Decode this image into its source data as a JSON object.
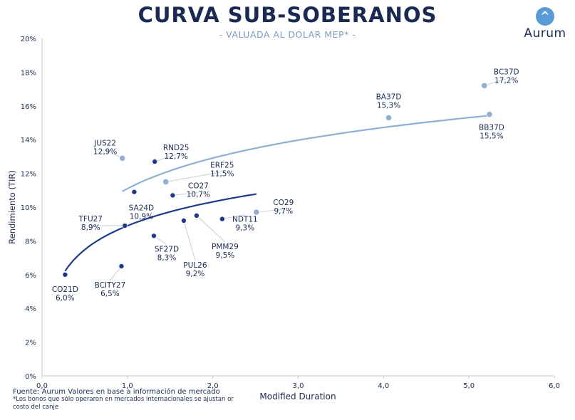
{
  "header": {
    "title": "CURVA SUB-SOBERANOS",
    "subtitle": "- VALUADA AL DOLAR MEP* -"
  },
  "logo": {
    "mark_glyph": "^",
    "name": "Aurum"
  },
  "footer": {
    "source": "Fuente: Aurum Valores en base a información de mercado",
    "note": "*Los bonos que sólo operaron en mercados internacionales se ajustan or costo del canje"
  },
  "colors": {
    "dark_series": "#1f3a8a",
    "light_series": "#8fb0d3",
    "axis": "#c8c8c8",
    "text": "#1a2a52"
  },
  "chart_data": {
    "type": "scatter",
    "xlabel": "Modified Duration",
    "ylabel": "Rendimiento (TIR)",
    "xlim": [
      0,
      6
    ],
    "ylim": [
      0,
      20
    ],
    "x_ticks": [
      "0,0",
      "1,0",
      "2,0",
      "3,0",
      "4,0",
      "5,0",
      "6,0"
    ],
    "y_ticks": [
      "0%",
      "2%",
      "4%",
      "6%",
      "8%",
      "10%",
      "12%",
      "14%",
      "16%",
      "18%",
      "20%"
    ],
    "grid": false,
    "series": [
      {
        "group": "dark",
        "points": [
          {
            "label": "CO21D",
            "value_label": "6,0%",
            "x": 0.27,
            "y": 6.0
          },
          {
            "label": "BCITY27",
            "value_label": "6,5%",
            "x": 0.93,
            "y": 6.5
          },
          {
            "label": "TFU27",
            "value_label": "8,9%",
            "x": 0.97,
            "y": 8.9
          },
          {
            "label": "SA24D",
            "value_label": "10,9%",
            "x": 1.08,
            "y": 10.9
          },
          {
            "label": "RND25",
            "value_label": "12,7%",
            "x": 1.32,
            "y": 12.7
          },
          {
            "label": "SF27D",
            "value_label": "8,3%",
            "x": 1.31,
            "y": 8.3
          },
          {
            "label": "CO27",
            "value_label": "10,7%",
            "x": 1.53,
            "y": 10.7
          },
          {
            "label": "PUL26",
            "value_label": "9,2%",
            "x": 1.66,
            "y": 9.2
          },
          {
            "label": "PMM29",
            "value_label": "9,5%",
            "x": 1.81,
            "y": 9.5
          },
          {
            "label": "NDT11",
            "value_label": "9,3%",
            "x": 2.11,
            "y": 9.3
          }
        ]
      },
      {
        "group": "light",
        "points": [
          {
            "label": "JUS22",
            "value_label": "12,9%",
            "x": 0.94,
            "y": 12.9
          },
          {
            "label": "ERF25",
            "value_label": "11,5%",
            "x": 1.45,
            "y": 11.5
          },
          {
            "label": "CO29",
            "value_label": "9,7%",
            "x": 2.51,
            "y": 9.7
          },
          {
            "label": "BA37D",
            "value_label": "15,3%",
            "x": 4.06,
            "y": 15.3
          },
          {
            "label": "BC37D",
            "value_label": "17,2%",
            "x": 5.18,
            "y": 17.2
          },
          {
            "label": "BB37D",
            "value_label": "15,5%",
            "x": 5.24,
            "y": 15.5
          }
        ]
      }
    ],
    "trendlines": [
      {
        "group": "dark",
        "type": "logarithmic",
        "x_range": [
          0.27,
          2.51
        ]
      },
      {
        "group": "light",
        "type": "logarithmic",
        "x_range": [
          0.94,
          5.24
        ]
      }
    ]
  }
}
